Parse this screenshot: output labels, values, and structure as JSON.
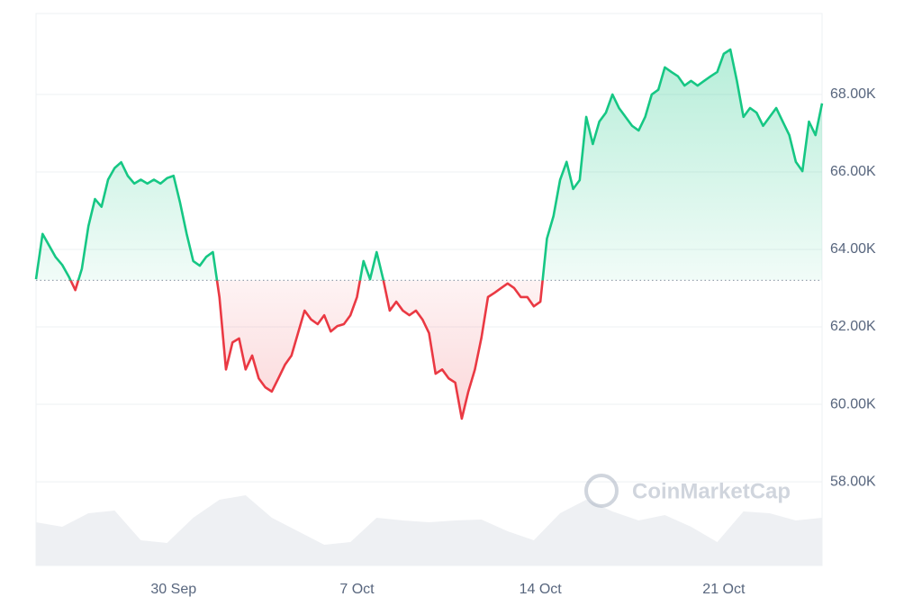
{
  "chart_data": {
    "type": "line",
    "categories": [
      null,
      null,
      null,
      null,
      null,
      null,
      null,
      null,
      null,
      null,
      null,
      null,
      null,
      null,
      null,
      null,
      null,
      null,
      null,
      null,
      null,
      "30 Sep",
      null,
      null,
      null,
      null,
      null,
      null,
      null,
      null,
      null,
      null,
      null,
      null,
      null,
      null,
      null,
      null,
      null,
      null,
      null,
      null,
      null,
      null,
      null,
      null,
      null,
      null,
      null,
      "7 Oct",
      null,
      null,
      null,
      null,
      null,
      null,
      null,
      null,
      null,
      null,
      null,
      null,
      null,
      null,
      null,
      null,
      null,
      null,
      null,
      null,
      null,
      null,
      null,
      null,
      null,
      null,
      null,
      "14 Oct",
      null,
      null,
      null,
      null,
      null,
      null,
      null,
      null,
      null,
      null,
      null,
      null,
      null,
      null,
      null,
      null,
      null,
      null,
      null,
      null,
      null,
      null,
      null,
      null,
      null,
      null,
      null,
      "21 Oct",
      null,
      null,
      null,
      null,
      null,
      null,
      null,
      null,
      null,
      null,
      null,
      null,
      null,
      null,
      null
    ],
    "values": [
      63230,
      64400,
      64100,
      63800,
      63600,
      63300,
      62950,
      63500,
      64600,
      65300,
      65100,
      65800,
      66100,
      66250,
      65900,
      65700,
      65800,
      65700,
      65800,
      65700,
      65840,
      65900,
      65200,
      64400,
      63700,
      63580,
      63810,
      63930,
      62770,
      60900,
      61600,
      61700,
      60900,
      61260,
      60670,
      60440,
      60330,
      60670,
      61020,
      61260,
      61840,
      62420,
      62190,
      62070,
      62300,
      61880,
      62020,
      62070,
      62300,
      62770,
      63700,
      63230,
      63930,
      63230,
      62420,
      62650,
      62420,
      62300,
      62420,
      62190,
      61840,
      60790,
      60900,
      60670,
      60560,
      59630,
      60330,
      60900,
      61720,
      62770,
      62880,
      63000,
      63120,
      63000,
      62770,
      62770,
      62530,
      62650,
      64280,
      64860,
      65790,
      66260,
      65560,
      65790,
      67420,
      66720,
      67300,
      67530,
      68000,
      67650,
      67420,
      67190,
      67070,
      67420,
      68000,
      68120,
      68700,
      68580,
      68470,
      68230,
      68350,
      68230,
      68350,
      68470,
      68580,
      69050,
      69160,
      68350,
      67420,
      67650,
      67530,
      67190,
      67420,
      67650,
      67300,
      66950,
      66260,
      66020,
      67300,
      66950,
      67770
    ],
    "baseline": 63200,
    "up_color": "#16c784",
    "down_color": "#ea3943",
    "ylim": [
      55840,
      70090
    ],
    "yticks": [
      {
        "value": 58000,
        "label": "58.00K"
      },
      {
        "value": 60000,
        "label": "60.00K"
      },
      {
        "value": 62000,
        "label": "62.00K"
      },
      {
        "value": 64000,
        "label": "64.00K"
      },
      {
        "value": 66000,
        "label": "66.00K"
      },
      {
        "value": 68000,
        "label": "68.00K"
      }
    ],
    "grid": true,
    "volume": {
      "values": [
        48,
        43,
        58,
        61,
        28,
        25,
        53,
        73,
        78,
        53,
        38,
        23,
        26,
        53,
        50,
        48,
        50,
        51,
        38,
        28,
        58,
        73,
        60,
        50,
        56,
        43,
        26,
        60,
        58,
        50,
        53
      ],
      "ylim": [
        0,
        100
      ],
      "color": "#eef0f3"
    },
    "watermark": "CoinMarketCap"
  }
}
